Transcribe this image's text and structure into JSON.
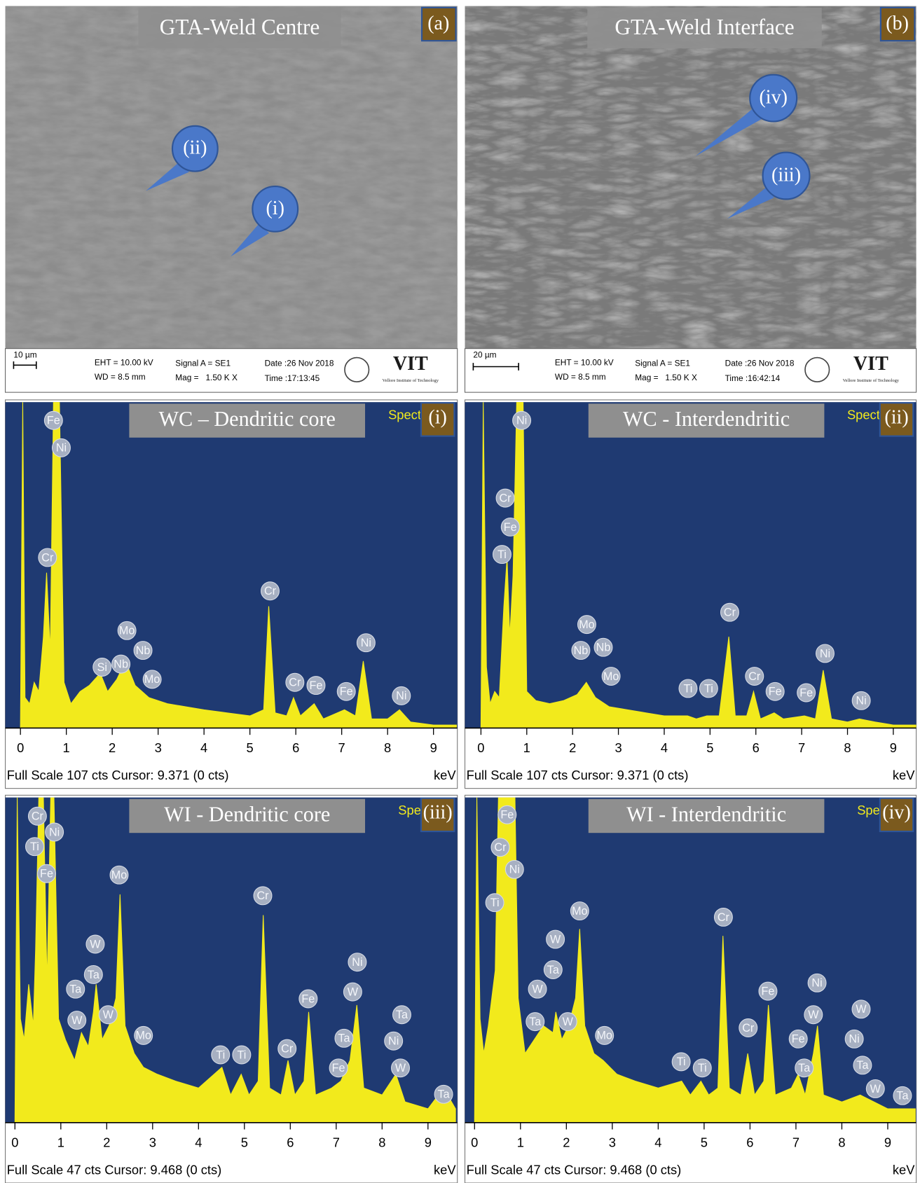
{
  "sem_panels": [
    {
      "title": "GTA-Weld Centre",
      "label": "(a)",
      "callouts": [
        "(ii)",
        "(i)"
      ],
      "scale_bar": "10 µm",
      "eht": "EHT = 10.00 kV",
      "wd": "WD = 8.5 mm",
      "signal": "Signal A = SE1",
      "mag": "Mag =   1.50 K X",
      "date": "Date :26 Nov 2018",
      "time": "Time :17:13:45",
      "logo": "VIT",
      "institute": "Vellore Institute of Technology"
    },
    {
      "title": "GTA-Weld Interface",
      "label": "(b)",
      "callouts": [
        "(iv)",
        "(iii)"
      ],
      "scale_bar": "20 µm",
      "eht": "EHT = 10.00 kV",
      "wd": "WD = 8.5 mm",
      "signal": "Signal A = SE1",
      "mag": "Mag =   1.50 K X",
      "date": "Date :26 Nov 2018",
      "time": "Time :16:42:14",
      "logo": "VIT",
      "institute": "Vellore Institute of Technology"
    }
  ],
  "chart_data": [
    {
      "type": "area",
      "title": "WC – Dendritic core",
      "panel_label": "(i)",
      "spectrum_label": "Spect",
      "footer": "Full Scale 107 cts Cursor: 9.371  (0 cts)",
      "x_label": "keV",
      "color": "#f2ea1c",
      "background": "#1f3a72",
      "xlim": [
        -0.33,
        9.52
      ],
      "ylim": [
        0,
        107
      ],
      "xticks": [
        0,
        1,
        2,
        3,
        4,
        5,
        6,
        7,
        8,
        9
      ],
      "x": [
        0,
        0.05,
        0.1,
        0.2,
        0.3,
        0.4,
        0.5,
        0.57,
        0.65,
        0.72,
        0.8,
        0.85,
        0.95,
        1.1,
        1.3,
        1.5,
        1.74,
        1.9,
        2.1,
        2.29,
        2.5,
        2.8,
        3.2,
        3.6,
        4.0,
        4.5,
        5.0,
        5.3,
        5.41,
        5.55,
        5.8,
        5.95,
        6.1,
        6.4,
        6.6,
        7.06,
        7.3,
        7.47,
        7.65,
        8.0,
        8.26,
        8.5,
        9.0,
        9.5
      ],
      "values": [
        0,
        107,
        10,
        8,
        15,
        12,
        30,
        51,
        25,
        107,
        107,
        107,
        15,
        8,
        12,
        14,
        18,
        12,
        16,
        22,
        14,
        10,
        8,
        7,
        6,
        5,
        4,
        6,
        40,
        5,
        4,
        10,
        4,
        8,
        3,
        6,
        4,
        22,
        3,
        3,
        6,
        2,
        1,
        1
      ],
      "annotations": [
        {
          "text": "Fe",
          "x": 0.72,
          "y": 101
        },
        {
          "text": "Ni",
          "x": 0.89,
          "y": 92
        },
        {
          "text": "Cr",
          "x": 0.59,
          "y": 56
        },
        {
          "text": "Si",
          "x": 1.78,
          "y": 20
        },
        {
          "text": "Nb",
          "x": 2.19,
          "y": 21
        },
        {
          "text": "Mo",
          "x": 2.32,
          "y": 32
        },
        {
          "text": "Nb",
          "x": 2.67,
          "y": 25.5
        },
        {
          "text": "Mo",
          "x": 2.87,
          "y": 16
        },
        {
          "text": "Cr",
          "x": 5.44,
          "y": 45
        },
        {
          "text": "Cr",
          "x": 5.98,
          "y": 15
        },
        {
          "text": "Fe",
          "x": 6.44,
          "y": 14
        },
        {
          "text": "Fe",
          "x": 7.1,
          "y": 12
        },
        {
          "text": "Ni",
          "x": 7.53,
          "y": 28
        },
        {
          "text": "Ni",
          "x": 8.3,
          "y": 10.6
        }
      ]
    },
    {
      "type": "area",
      "title": "WC - Interdendritic",
      "panel_label": "(ii)",
      "spectrum_label": "Spect",
      "footer": "Full Scale 107 cts Cursor: 9.371  (0 cts)",
      "x_label": "keV",
      "color": "#f2ea1c",
      "background": "#1f3a72",
      "xlim": [
        -0.35,
        9.5
      ],
      "ylim": [
        0,
        107
      ],
      "xticks": [
        0,
        1,
        2,
        3,
        4,
        5,
        6,
        7,
        8,
        9
      ],
      "x": [
        0,
        0.05,
        0.12,
        0.2,
        0.3,
        0.4,
        0.5,
        0.57,
        0.63,
        0.7,
        0.78,
        0.85,
        0.92,
        1.0,
        1.2,
        1.5,
        1.8,
        2.1,
        2.3,
        2.5,
        2.8,
        3.2,
        3.6,
        4.0,
        4.51,
        4.7,
        4.93,
        5.2,
        5.41,
        5.55,
        5.8,
        5.95,
        6.1,
        6.4,
        6.6,
        7.06,
        7.3,
        7.47,
        7.65,
        8.0,
        8.26,
        8.6,
        9.0,
        9.5
      ],
      "values": [
        0,
        107,
        20,
        8,
        12,
        10,
        40,
        56,
        30,
        50,
        107,
        107,
        107,
        12,
        9,
        8,
        9,
        11,
        15,
        10,
        7,
        6,
        5,
        4,
        4,
        3,
        4,
        4,
        30,
        4,
        4,
        12,
        3,
        5,
        3,
        4,
        3,
        19,
        3,
        2,
        3,
        2,
        1,
        1
      ],
      "annotations": [
        {
          "text": "Ni",
          "x": 0.89,
          "y": 101
        },
        {
          "text": "Cr",
          "x": 0.53,
          "y": 75.5
        },
        {
          "text": "Fe",
          "x": 0.64,
          "y": 66
        },
        {
          "text": "Ti",
          "x": 0.46,
          "y": 57
        },
        {
          "text": "Mo",
          "x": 2.31,
          "y": 34
        },
        {
          "text": "Nb",
          "x": 2.18,
          "y": 25.5
        },
        {
          "text": "Nb",
          "x": 2.67,
          "y": 26.5
        },
        {
          "text": "Mo",
          "x": 2.84,
          "y": 17
        },
        {
          "text": "Ti",
          "x": 4.52,
          "y": 13
        },
        {
          "text": "Ti",
          "x": 4.97,
          "y": 13
        },
        {
          "text": "Cr",
          "x": 5.43,
          "y": 38
        },
        {
          "text": "Cr",
          "x": 5.97,
          "y": 17
        },
        {
          "text": "Fe",
          "x": 6.42,
          "y": 12
        },
        {
          "text": "Fe",
          "x": 7.1,
          "y": 11.6
        },
        {
          "text": "Ni",
          "x": 7.51,
          "y": 24.5
        },
        {
          "text": "Ni",
          "x": 8.3,
          "y": 9
        }
      ]
    },
    {
      "type": "area",
      "title": "WI - Dendritic core",
      "panel_label": "(iii)",
      "spectrum_label": "Spe",
      "footer": "Full Scale 47 cts Cursor: 9.468  (0 cts)",
      "x_label": "keV",
      "color": "#f2ea1c",
      "background": "#1f3a72",
      "xlim": [
        -0.21,
        9.64
      ],
      "ylim": [
        0,
        47
      ],
      "xticks": [
        0,
        1,
        2,
        3,
        4,
        5,
        6,
        7,
        8,
        9
      ],
      "x": [
        0,
        0.05,
        0.12,
        0.2,
        0.3,
        0.4,
        0.45,
        0.52,
        0.57,
        0.62,
        0.7,
        0.78,
        0.85,
        0.95,
        1.1,
        1.3,
        1.45,
        1.6,
        1.71,
        1.77,
        1.9,
        2.05,
        2.2,
        2.29,
        2.4,
        2.6,
        2.8,
        3.1,
        3.5,
        4.0,
        4.51,
        4.7,
        4.93,
        5.1,
        5.3,
        5.41,
        5.55,
        5.8,
        5.95,
        6.1,
        6.3,
        6.4,
        6.55,
        6.9,
        7.1,
        7.3,
        7.45,
        7.6,
        8.0,
        8.3,
        8.5,
        9.0,
        9.34,
        9.6
      ],
      "values": [
        0,
        47,
        15,
        12,
        20,
        14,
        25,
        47,
        47,
        47,
        20,
        47,
        47,
        15,
        12,
        9,
        13,
        11,
        16,
        20,
        12,
        14,
        18,
        33,
        14,
        10,
        8,
        7,
        6,
        5,
        8,
        4,
        7,
        4,
        6,
        30,
        5,
        4,
        9,
        4,
        6,
        16,
        4,
        5,
        6,
        9,
        17,
        5,
        4,
        7,
        3,
        2,
        5,
        2
      ],
      "annotations": [
        {
          "text": "Cr",
          "x": 0.49,
          "y": 44.3
        },
        {
          "text": "Ti",
          "x": 0.43,
          "y": 39.9
        },
        {
          "text": "Ni",
          "x": 0.86,
          "y": 42
        },
        {
          "text": "Fe",
          "x": 0.69,
          "y": 36
        },
        {
          "text": "Mo",
          "x": 2.27,
          "y": 35.8
        },
        {
          "text": "W",
          "x": 1.75,
          "y": 25.8
        },
        {
          "text": "Ta",
          "x": 1.71,
          "y": 21.4
        },
        {
          "text": "Ta",
          "x": 1.32,
          "y": 19.3
        },
        {
          "text": "W",
          "x": 1.35,
          "y": 14.8
        },
        {
          "text": "W",
          "x": 2.03,
          "y": 15.6
        },
        {
          "text": "Mo",
          "x": 2.8,
          "y": 12.6
        },
        {
          "text": "Ti",
          "x": 4.48,
          "y": 9.8
        },
        {
          "text": "Ti",
          "x": 4.94,
          "y": 9.8
        },
        {
          "text": "Cr",
          "x": 5.4,
          "y": 32.8
        },
        {
          "text": "Cr",
          "x": 5.93,
          "y": 10.7
        },
        {
          "text": "Fe",
          "x": 6.39,
          "y": 17.9
        },
        {
          "text": "Ta",
          "x": 7.17,
          "y": 12.2
        },
        {
          "text": "Fe",
          "x": 7.05,
          "y": 7.9
        },
        {
          "text": "W",
          "x": 7.36,
          "y": 18.9
        },
        {
          "text": "Ni",
          "x": 7.46,
          "y": 23.2
        },
        {
          "text": "Ta",
          "x": 8.43,
          "y": 15.6
        },
        {
          "text": "Ni",
          "x": 8.25,
          "y": 11.8
        },
        {
          "text": "W",
          "x": 8.4,
          "y": 7.9
        },
        {
          "text": "Ta",
          "x": 9.34,
          "y": 4.1
        }
      ]
    },
    {
      "type": "area",
      "title": "WI - Interdendritic",
      "panel_label": "(iv)",
      "spectrum_label": "Spe",
      "footer": "Full Scale 47 cts Cursor: 9.468  (0 cts)",
      "x_label": "keV",
      "color": "#f2ea1c",
      "background": "#1f3a72",
      "xlim": [
        -0.21,
        9.62
      ],
      "ylim": [
        0,
        47
      ],
      "xticks": [
        0,
        1,
        2,
        3,
        4,
        5,
        6,
        7,
        8,
        9
      ],
      "x": [
        0,
        0.05,
        0.12,
        0.2,
        0.3,
        0.45,
        0.52,
        0.6,
        0.7,
        0.8,
        0.88,
        0.95,
        1.1,
        1.3,
        1.5,
        1.71,
        1.77,
        1.9,
        2.05,
        2.2,
        2.29,
        2.4,
        2.6,
        2.8,
        3.1,
        3.5,
        4.0,
        4.51,
        4.7,
        4.93,
        5.1,
        5.3,
        5.41,
        5.55,
        5.8,
        5.95,
        6.1,
        6.3,
        6.4,
        6.55,
        6.9,
        7.05,
        7.2,
        7.38,
        7.47,
        7.6,
        8.0,
        8.4,
        8.7,
        9.0,
        9.6
      ],
      "values": [
        0,
        47,
        15,
        10,
        14,
        22,
        47,
        47,
        47,
        47,
        47,
        18,
        10,
        12,
        14,
        13,
        16,
        12,
        14,
        18,
        28,
        14,
        10,
        9,
        7,
        6,
        5,
        6,
        4,
        6,
        4,
        5,
        27,
        5,
        4,
        10,
        4,
        6,
        17,
        4,
        5,
        7,
        4,
        10,
        14,
        4,
        3,
        4,
        3,
        2,
        2
      ],
      "annotations": [
        {
          "text": "Fe",
          "x": 0.71,
          "y": 44.5
        },
        {
          "text": "Cr",
          "x": 0.56,
          "y": 39.8
        },
        {
          "text": "Ni",
          "x": 0.87,
          "y": 36.6
        },
        {
          "text": "Ti",
          "x": 0.44,
          "y": 31.8
        },
        {
          "text": "Mo",
          "x": 2.29,
          "y": 30.6
        },
        {
          "text": "W",
          "x": 1.76,
          "y": 26.5
        },
        {
          "text": "Ta",
          "x": 1.71,
          "y": 22.1
        },
        {
          "text": "W",
          "x": 1.37,
          "y": 19.3
        },
        {
          "text": "Ta",
          "x": 1.32,
          "y": 14.6
        },
        {
          "text": "W",
          "x": 2.03,
          "y": 14.6
        },
        {
          "text": "Mo",
          "x": 2.83,
          "y": 12.6
        },
        {
          "text": "Ti",
          "x": 4.5,
          "y": 8.8
        },
        {
          "text": "Ti",
          "x": 4.96,
          "y": 7.9
        },
        {
          "text": "Cr",
          "x": 5.42,
          "y": 29.7
        },
        {
          "text": "Cr",
          "x": 5.96,
          "y": 13.7
        },
        {
          "text": "Fe",
          "x": 6.39,
          "y": 19
        },
        {
          "text": "Fe",
          "x": 7.05,
          "y": 12.1
        },
        {
          "text": "Ta",
          "x": 7.18,
          "y": 7.9
        },
        {
          "text": "W",
          "x": 7.38,
          "y": 15.6
        },
        {
          "text": "Ni",
          "x": 7.46,
          "y": 20.2
        },
        {
          "text": "W",
          "x": 8.42,
          "y": 16.4
        },
        {
          "text": "Ni",
          "x": 8.27,
          "y": 12.1
        },
        {
          "text": "Ta",
          "x": 8.45,
          "y": 8.3
        },
        {
          "text": "W",
          "x": 8.73,
          "y": 4.9
        },
        {
          "text": "Ta",
          "x": 9.32,
          "y": 3.9
        }
      ]
    }
  ]
}
